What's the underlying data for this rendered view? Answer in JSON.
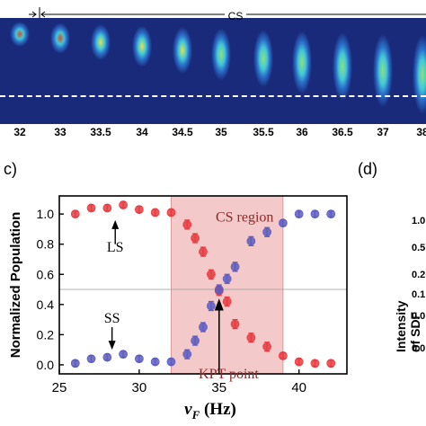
{
  "strip": {
    "top_label": "CS",
    "tick_labels": [
      "32",
      "33",
      "33.5",
      "34",
      "34.5",
      "35",
      "35.5",
      "36",
      "36.5",
      "37",
      "38"
    ]
  },
  "panel_c_label": "c)",
  "panel_d_label": "(d)",
  "panel_d": {
    "ylabel": "Intensity of SDF",
    "tick_labels": [
      "1.0",
      "0.5",
      "0.2",
      "0.1",
      "0.0",
      "0.0"
    ]
  },
  "chart_data": {
    "type": "scatter",
    "title": "",
    "xlabel": "ν_F (Hz)",
    "xlabel_main": "ν",
    "xlabel_sub": "F",
    "xlabel_unit": " (Hz)",
    "ylabel": "Normalized Population",
    "xlim": [
      25,
      43
    ],
    "ylim": [
      -0.06,
      1.12
    ],
    "xticks": [
      25,
      30,
      35,
      40
    ],
    "yticks": [
      0.0,
      0.2,
      0.4,
      0.6,
      0.8,
      1.0
    ],
    "ytick_labels": [
      "0.0",
      "0.2",
      "0.4",
      "0.6",
      "0.8",
      "1.0"
    ],
    "region": {
      "x0": 32,
      "x1": 39,
      "color": "#f3c9c9"
    },
    "hline": 0.5,
    "series": [
      {
        "color": "#e8393f",
        "x": [
          26,
          27,
          28,
          29,
          30,
          31,
          32,
          33,
          33.5,
          34,
          34.5,
          35,
          35.5,
          36,
          37,
          38,
          39,
          40,
          41,
          42
        ],
        "y": [
          1.0,
          1.04,
          1.04,
          1.06,
          1.03,
          1.01,
          1.01,
          0.93,
          0.84,
          0.75,
          0.6,
          0.49,
          0.42,
          0.27,
          0.18,
          0.12,
          0.06,
          0.02,
          0.01,
          0.01
        ],
        "err": [
          0.02,
          0.02,
          0.02,
          0.02,
          0.02,
          0.02,
          0.02,
          0.03,
          0.03,
          0.03,
          0.03,
          0.03,
          0.03,
          0.03,
          0.03,
          0.03,
          0.02,
          0.02,
          0.02,
          0.02
        ]
      },
      {
        "color": "#5b5bc0",
        "x": [
          26,
          27,
          28,
          29,
          30,
          31,
          32,
          33,
          33.5,
          34,
          34.5,
          35,
          35.5,
          36,
          37,
          38,
          39,
          40,
          41,
          42
        ],
        "y": [
          0.01,
          0.04,
          0.05,
          0.07,
          0.04,
          0.02,
          0.02,
          0.07,
          0.16,
          0.25,
          0.39,
          0.5,
          0.57,
          0.65,
          0.82,
          0.88,
          0.94,
          1.0,
          1.0,
          1.0
        ],
        "err": [
          0.02,
          0.02,
          0.02,
          0.02,
          0.02,
          0.02,
          0.02,
          0.03,
          0.03,
          0.03,
          0.03,
          0.03,
          0.03,
          0.03,
          0.03,
          0.03,
          0.02,
          0.02,
          0.02,
          0.02
        ]
      }
    ],
    "annotations": [
      {
        "text": "LS",
        "color": "#000000",
        "x": 28.5,
        "y": 0.75
      },
      {
        "text": "SS",
        "color": "#000000",
        "x": 28.3,
        "y": 0.28
      },
      {
        "text": "CS region",
        "color": "#8b2a2a",
        "x": 36.6,
        "y": 0.95
      },
      {
        "text": "KPT point",
        "color": "#8b2a2a",
        "x": 35.6,
        "y": -0.09
      }
    ]
  }
}
